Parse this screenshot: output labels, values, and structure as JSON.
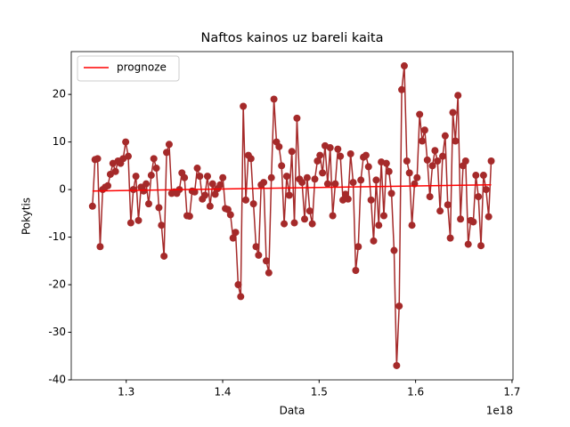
{
  "chart_data": {
    "type": "line",
    "title": "Naftos kainos uz bareli kaita",
    "x_label": "Data",
    "y_label": "Pokytis",
    "x_offset_label": "1e18",
    "xlim": [
      1.243,
      1.701
    ],
    "ylim": [
      -40,
      29
    ],
    "xticks": [
      1.3,
      1.4,
      1.5,
      1.6,
      1.7
    ],
    "yticks": [
      -40,
      -30,
      -20,
      -10,
      0,
      10,
      20
    ],
    "legend": "upper left",
    "series": [
      {
        "color": "#a52a2a",
        "marker": true,
        "x": [
          1.265,
          1.26765,
          1.2703,
          1.27295,
          1.2756,
          1.27825,
          1.2809,
          1.28355,
          1.2862,
          1.28885,
          1.2915,
          1.29415,
          1.2968,
          1.29945,
          1.3021,
          1.30475,
          1.3074,
          1.31005,
          1.3127,
          1.31535,
          1.318,
          1.32065,
          1.3233,
          1.32595,
          1.3286,
          1.33125,
          1.3339,
          1.33655,
          1.3392,
          1.34185,
          1.3445,
          1.34715,
          1.3498,
          1.35245,
          1.3551,
          1.35775,
          1.3604,
          1.36305,
          1.3657,
          1.36835,
          1.371,
          1.37365,
          1.3763,
          1.37895,
          1.3816,
          1.38425,
          1.3869,
          1.38955,
          1.3922,
          1.39485,
          1.3975,
          1.40015,
          1.4028,
          1.40545,
          1.4081,
          1.41075,
          1.4134,
          1.41605,
          1.4187,
          1.42135,
          1.424,
          1.42665,
          1.4293,
          1.43195,
          1.4346,
          1.43725,
          1.4399,
          1.44255,
          1.4452,
          1.44785,
          1.4505,
          1.45315,
          1.4558,
          1.45845,
          1.4611,
          1.46375,
          1.4664,
          1.46905,
          1.4717,
          1.47435,
          1.477,
          1.47965,
          1.4823,
          1.48495,
          1.4876,
          1.49025,
          1.4929,
          1.49555,
          1.4982,
          1.50085,
          1.5035,
          1.50615,
          1.5088,
          1.51145,
          1.5141,
          1.51675,
          1.5194,
          1.52205,
          1.5247,
          1.52735,
          1.53,
          1.53265,
          1.5353,
          1.53795,
          1.5406,
          1.54325,
          1.5459,
          1.54855,
          1.5512,
          1.55385,
          1.5565,
          1.55915,
          1.5618,
          1.56445,
          1.5671,
          1.56975,
          1.5724,
          1.57505,
          1.5777,
          1.58035,
          1.583,
          1.58565,
          1.5883,
          1.59095,
          1.5936,
          1.59625,
          1.5989,
          1.60155,
          1.6042,
          1.60685,
          1.6095,
          1.61215,
          1.6148,
          1.61745,
          1.6201,
          1.62275,
          1.6254,
          1.62805,
          1.6307,
          1.63335,
          1.636,
          1.63865,
          1.6413,
          1.64395,
          1.6466,
          1.64925,
          1.6519,
          1.65455,
          1.6572,
          1.65985,
          1.6625,
          1.66515,
          1.6678,
          1.67045,
          1.6731,
          1.67575,
          1.6784
        ],
        "values": [
          -3.5,
          6.3,
          6.5,
          -12,
          0,
          0.5,
          0.8,
          3.2,
          5.5,
          3.8,
          6,
          5.5,
          6.5,
          10,
          7,
          -7,
          0,
          2.8,
          -6.5,
          0.5,
          -0.3,
          1.2,
          -3,
          3,
          6.5,
          4.5,
          -3.8,
          -7.5,
          -14,
          7.8,
          9.5,
          -0.8,
          -0.5,
          -0.8,
          0,
          3.5,
          2.5,
          -5.5,
          -5.6,
          -0.3,
          -0.5,
          4.5,
          2.8,
          -2,
          -1.2,
          2.8,
          -3.5,
          1.2,
          -1,
          0.2,
          1,
          2.5,
          -4,
          -4.2,
          -5.3,
          -10.2,
          -9,
          -20,
          -22.5,
          17.5,
          -2.2,
          7.2,
          6.5,
          -3,
          -12,
          -13.8,
          1,
          1.5,
          -15,
          -17.5,
          2.5,
          19,
          10,
          9,
          5,
          -7.2,
          2.8,
          -1.2,
          8,
          -7,
          15,
          2.2,
          1.5,
          -6.2,
          2.5,
          -4.5,
          -7.2,
          2.2,
          6,
          7.2,
          3.5,
          9.2,
          1.2,
          8.8,
          -5.5,
          1.2,
          8.5,
          7,
          -2.2,
          -1,
          -2,
          7.5,
          1.5,
          -17,
          -12,
          2,
          6.8,
          7.2,
          4.8,
          -2.2,
          -10.8,
          2,
          -7.5,
          5.8,
          -5.5,
          5.5,
          3.8,
          -0.8,
          -12.8,
          -37,
          -24.5,
          21,
          26,
          6,
          3.5,
          -7.5,
          1.2,
          2.5,
          15.8,
          10.2,
          12.5,
          6.2,
          -1.5,
          5,
          8.2,
          6,
          -4.5,
          7,
          11.3,
          -3.2,
          -10.2,
          16.2,
          10.2,
          19.8,
          -6.2,
          5,
          6,
          -11.5,
          -6.5,
          -6.8,
          3,
          -1.5,
          -11.8,
          3,
          0,
          -5.7,
          6
        ]
      },
      {
        "name": "prognoze",
        "color": "#ff0000",
        "marker": false,
        "x": [
          1.265,
          1.6784
        ],
        "values": [
          -0.3,
          1.0
        ]
      }
    ]
  }
}
